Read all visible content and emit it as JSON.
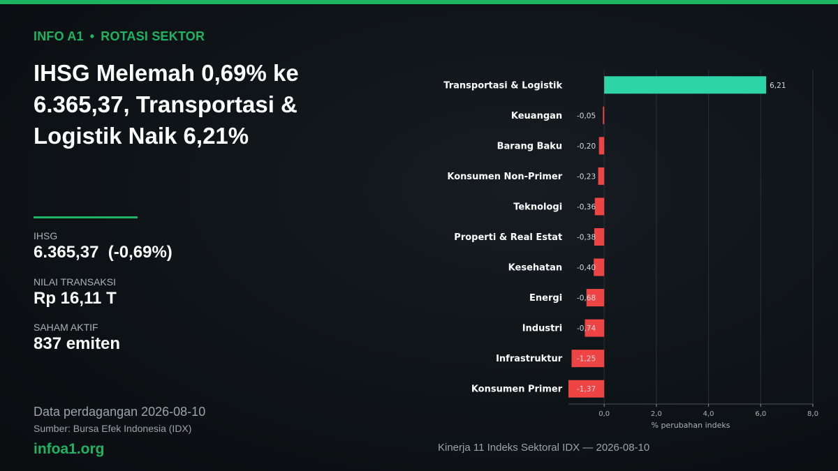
{
  "kicker": {
    "brand": "INFO A1",
    "separator": "•",
    "section": "ROTASI SEKTOR"
  },
  "headline": "IHSG Melemah 0,69% ke 6.365,37, Transportasi & Logistik Naik 6,21%",
  "stats": [
    {
      "label": "IHSG",
      "value": "6.365,37  (-0,69%)"
    },
    {
      "label": "NILAI TRANSAKSI",
      "value": "Rp 16,11 T"
    },
    {
      "label": "SAHAM AKTIF",
      "value": "837 emiten"
    }
  ],
  "footer": {
    "date": "Data perdagangan 2026-08-10",
    "source": "Sumber: Bursa Efek Indonesia (IDX)",
    "brand": "infoa1.org"
  },
  "colors": {
    "accent": "#1db462",
    "positive": "#2dd4a8",
    "negative": "#ef4444"
  },
  "chart_data": {
    "type": "bar",
    "orientation": "horizontal",
    "caption": "Kinerja 11 Indeks Sektoral IDX — 2026-08-10",
    "xlabel": "% perubahan indeks",
    "ylabel": "",
    "xlim": [
      -1.37,
      8.0
    ],
    "xticks": [
      0.0,
      2.0,
      4.0,
      6.0,
      8.0
    ],
    "xtick_labels": [
      "0,0",
      "2,0",
      "4,0",
      "6,0",
      "8,0"
    ],
    "grid": true,
    "categories": [
      "Transportasi & Logistik",
      "Keuangan",
      "Barang Baku",
      "Konsumen Non-Primer",
      "Teknologi",
      "Properti & Real Estat",
      "Kesehatan",
      "Energi",
      "Industri",
      "Infrastruktur",
      "Konsumen Primer"
    ],
    "values": [
      6.21,
      -0.05,
      -0.2,
      -0.23,
      -0.36,
      -0.38,
      -0.4,
      -0.68,
      -0.74,
      -1.25,
      -1.37
    ],
    "value_labels": [
      "6,21",
      "-0,05",
      "-0,20",
      "-0,23",
      "-0,36",
      "-0,38",
      "-0,40",
      "-0,68",
      "-0,74",
      "-1,25",
      "-1,37"
    ]
  }
}
